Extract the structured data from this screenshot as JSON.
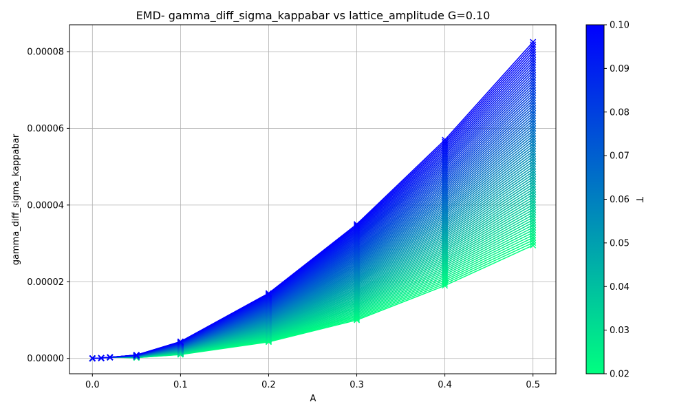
{
  "chart_data": {
    "type": "line",
    "title": "EMD- gamma_diff_sigma_kappabar vs lattice_amplitude G=0.10",
    "xlabel": "A",
    "ylabel": "gamma_diff_sigma_kappabar",
    "xlim": [
      -0.026,
      0.526
    ],
    "ylim": [
      -4e-06,
      8.7e-05
    ],
    "xticks": [
      0.0,
      0.1,
      0.2,
      0.3,
      0.4,
      0.5
    ],
    "xtick_labels": [
      "0.0",
      "0.1",
      "0.2",
      "0.3",
      "0.4",
      "0.5"
    ],
    "yticks": [
      0.0,
      2e-05,
      4e-05,
      6e-05,
      8e-05
    ],
    "ytick_labels": [
      "0.00000",
      "0.00002",
      "0.00004",
      "0.00006",
      "0.00008"
    ],
    "grid": true,
    "marker": "x",
    "x": [
      0.0,
      0.01,
      0.02,
      0.05,
      0.1,
      0.2,
      0.3,
      0.4,
      0.5
    ],
    "series_count": 81,
    "series_parameter": "T",
    "series_T_range": [
      0.02,
      0.1
    ],
    "y_at_T_min": [
      0.0,
      1e-07,
      3e-07,
      2e-07,
      1e-06,
      4.3e-06,
      1e-05,
      1.9e-05,
      2.95e-05
    ],
    "y_at_T_max": [
      0.0,
      1e-07,
      3e-07,
      9e-07,
      4.4e-06,
      1.7e-05,
      3.5e-05,
      5.7e-05,
      8.25e-05
    ],
    "colorbar": {
      "label": "T",
      "min": 0.02,
      "max": 0.1,
      "ticks": [
        0.02,
        0.03,
        0.04,
        0.05,
        0.06,
        0.07,
        0.08,
        0.09,
        0.1
      ],
      "tick_labels": [
        "0.02",
        "0.03",
        "0.04",
        "0.05",
        "0.06",
        "0.07",
        "0.08",
        "0.09",
        "0.10"
      ],
      "colormap": "winter_r",
      "color_at_min": "#00ff80",
      "color_at_max": "#0000ff"
    },
    "colors": {
      "grid": "#b0b0b0",
      "axis": "#000000",
      "background": "#ffffff"
    }
  }
}
